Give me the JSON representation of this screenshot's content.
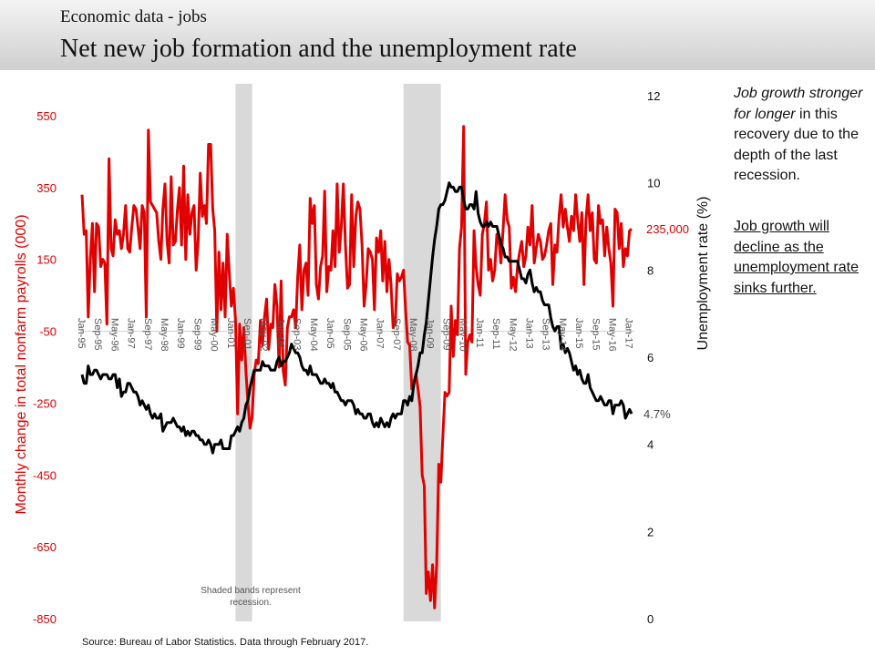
{
  "header": {
    "subtitle": "Economic data - jobs",
    "title": "Net new job formation and the unemployment rate"
  },
  "notes": {
    "note1_italic": "Job growth stronger for longer",
    "note1_rest": " in this recovery due to the depth of the last recession.",
    "note2": "Job growth will decline as the unemployment rate sinks further."
  },
  "source": "Source: Bureau of Labor Statistics. Data through February 2017.",
  "colors": {
    "payrolls": "#e00000",
    "unemployment": "#000000",
    "recession": "#d9d9d9"
  },
  "chart_data": {
    "type": "line",
    "start_month": "Jan-95",
    "end_month": "Feb-17",
    "x_tick_labels": [
      "Jan-95",
      "Sep-95",
      "May-96",
      "Jan-97",
      "Sep-97",
      "May-98",
      "Jan-99",
      "Sep-99",
      "May-00",
      "Jan-01",
      "Sep-01",
      "May-02",
      "Jan-03",
      "Sep-03",
      "May-04",
      "Jan-05",
      "Sep-05",
      "May-06",
      "Jan-07",
      "Sep-07",
      "May-08",
      "Jan-09",
      "Sep-09",
      "May-10",
      "Jan-11",
      "Sep-11",
      "May-12",
      "Jan-13",
      "Sep-13",
      "May-14",
      "Jan-15",
      "Sep-15",
      "May-16",
      "Jan-17"
    ],
    "x_tick_every_months": 8,
    "left_axis": {
      "label": "Monthly change in total nonfarm payrolls (000)",
      "ylim": [
        -850,
        550
      ],
      "ticks": [
        "550",
        "350",
        "150",
        "-50",
        "-250",
        "-450",
        "-650",
        "-850"
      ],
      "x_axis_crosses_at": -50
    },
    "right_axis": {
      "label": "Unemployment rate (%)",
      "ylim": [
        0,
        12
      ],
      "ticks": [
        "12",
        "10",
        "8",
        "6",
        "4",
        "2",
        "0"
      ]
    },
    "recessions": [
      {
        "start": "Mar-01",
        "end": "Nov-01"
      },
      {
        "start": "Dec-07",
        "end": "Jun-09"
      }
    ],
    "annotations": {
      "last_payrolls": "235,000",
      "last_unemployment": "4.7%",
      "shade_note": "Shaded bands represent recession."
    },
    "series": [
      {
        "name": "Payrolls",
        "axis": "left",
        "values": [
          330,
          220,
          230,
          -10,
          150,
          250,
          60,
          250,
          240,
          130,
          150,
          140,
          -30,
          430,
          180,
          160,
          260,
          220,
          230,
          180,
          220,
          300,
          180,
          170,
          240,
          300,
          290,
          240,
          180,
          300,
          280,
          -10,
          510,
          310,
          300,
          290,
          280,
          200,
          150,
          290,
          360,
          200,
          140,
          380,
          190,
          200,
          290,
          350,
          190,
          410,
          150,
          330,
          220,
          280,
          300,
          120,
          200,
          390,
          270,
          300,
          250,
          470,
          470,
          290,
          230,
          -50,
          170,
          10,
          140,
          -10,
          220,
          110,
          20,
          70,
          -20,
          -280,
          -30,
          -130,
          -40,
          -160,
          -250,
          -320,
          -290,
          -170,
          -130,
          -140,
          -20,
          -90,
          -10,
          40,
          -100,
          -30,
          -40,
          80,
          20,
          -150,
          90,
          -160,
          -200,
          -40,
          -10,
          -10,
          10,
          -40,
          100,
          190,
          10,
          120,
          140,
          50,
          320,
          250,
          300,
          80,
          40,
          130,
          160,
          340,
          60,
          130,
          120,
          230,
          130,
          360,
          170,
          240,
          360,
          190,
          70,
          80,
          330,
          130,
          270,
          310,
          290,
          190,
          20,
          80,
          180,
          170,
          150,
          10,
          210,
          170,
          230,
          90,
          200,
          60,
          150,
          80,
          -40,
          -30,
          110,
          90,
          100,
          120,
          10,
          -80,
          -90,
          -210,
          -190,
          -170,
          -210,
          -260,
          -450,
          -480,
          -780,
          -720,
          -800,
          -700,
          -820,
          -700,
          -420,
          -470,
          -340,
          -220,
          -230,
          -220,
          20,
          -120,
          -20,
          -60,
          180,
          240,
          520,
          -170,
          -80,
          -60,
          -80,
          230,
          130,
          80,
          50,
          220,
          250,
          310,
          120,
          150,
          90,
          120,
          220,
          200,
          140,
          230,
          330,
          260,
          240,
          70,
          100,
          60,
          130,
          170,
          200,
          130,
          160,
          240,
          190,
          300,
          140,
          180,
          220,
          200,
          150,
          160,
          190,
          230,
          250,
          80,
          190,
          170,
          270,
          330,
          240,
          290,
          240,
          200,
          270,
          230,
          330,
          260,
          200,
          280,
          80,
          260,
          330,
          230,
          280,
          150,
          140,
          300,
          250,
          260,
          160,
          240,
          180,
          140,
          20,
          290,
          280,
          180,
          250,
          130,
          180,
          160,
          230,
          235
        ]
      },
      {
        "name": "Unemployment rate",
        "axis": "right",
        "values": [
          5.6,
          5.4,
          5.4,
          5.8,
          5.6,
          5.6,
          5.7,
          5.7,
          5.6,
          5.5,
          5.6,
          5.6,
          5.6,
          5.5,
          5.5,
          5.6,
          5.6,
          5.3,
          5.5,
          5.1,
          5.2,
          5.2,
          5.4,
          5.4,
          5.3,
          5.2,
          5.2,
          5.1,
          4.9,
          5.0,
          4.9,
          4.8,
          4.9,
          4.7,
          4.6,
          4.7,
          4.6,
          4.6,
          4.7,
          4.3,
          4.4,
          4.5,
          4.5,
          4.5,
          4.6,
          4.5,
          4.4,
          4.4,
          4.3,
          4.4,
          4.2,
          4.3,
          4.2,
          4.3,
          4.3,
          4.2,
          4.2,
          4.1,
          4.1,
          4.0,
          4.0,
          4.1,
          4.0,
          3.8,
          4.0,
          4.0,
          4.0,
          4.1,
          3.9,
          3.9,
          3.9,
          3.9,
          4.2,
          4.2,
          4.3,
          4.4,
          4.3,
          4.5,
          4.6,
          4.9,
          5.0,
          5.3,
          5.5,
          5.7,
          5.7,
          5.7,
          5.7,
          5.9,
          5.8,
          5.8,
          5.8,
          5.7,
          5.7,
          5.7,
          5.9,
          6.0,
          5.8,
          5.9,
          5.9,
          6.0,
          6.1,
          6.3,
          6.2,
          6.1,
          6.1,
          6.0,
          5.8,
          5.7,
          5.7,
          5.6,
          5.8,
          5.6,
          5.6,
          5.6,
          5.5,
          5.4,
          5.4,
          5.5,
          5.4,
          5.4,
          5.3,
          5.4,
          5.2,
          5.2,
          5.1,
          5.0,
          5.0,
          4.9,
          5.0,
          5.0,
          5.0,
          4.9,
          4.7,
          4.8,
          4.7,
          4.7,
          4.6,
          4.6,
          4.7,
          4.7,
          4.5,
          4.4,
          4.5,
          4.4,
          4.6,
          4.5,
          4.4,
          4.5,
          4.4,
          4.6,
          4.7,
          4.6,
          4.7,
          4.7,
          4.7,
          5.0,
          5.0,
          4.9,
          5.1,
          5.0,
          5.4,
          5.6,
          5.8,
          6.1,
          6.1,
          6.5,
          6.8,
          7.3,
          7.8,
          8.3,
          8.7,
          9.0,
          9.4,
          9.5,
          9.5,
          9.6,
          9.8,
          10.0,
          9.9,
          9.9,
          9.8,
          9.8,
          9.9,
          9.9,
          9.6,
          9.4,
          9.4,
          9.5,
          9.5,
          9.4,
          9.8,
          9.3,
          9.1,
          9.0,
          9.0,
          9.1,
          9.0,
          9.1,
          9.0,
          9.0,
          9.0,
          8.8,
          8.6,
          8.5,
          8.3,
          8.3,
          8.2,
          8.2,
          8.2,
          8.2,
          8.2,
          8.0,
          7.8,
          7.8,
          7.7,
          7.9,
          8.0,
          7.7,
          7.5,
          7.6,
          7.5,
          7.5,
          7.3,
          7.2,
          7.2,
          7.2,
          6.9,
          6.7,
          6.6,
          6.7,
          6.7,
          6.2,
          6.3,
          6.1,
          6.2,
          6.1,
          5.9,
          5.7,
          5.8,
          5.6,
          5.7,
          5.5,
          5.4,
          5.4,
          5.6,
          5.3,
          5.2,
          5.1,
          5.0,
          5.0,
          5.1,
          5.0,
          4.9,
          4.9,
          5.0,
          5.0,
          4.7,
          4.9,
          4.9,
          4.9,
          5.0,
          4.9,
          4.6,
          4.7,
          4.8,
          4.7
        ]
      }
    ]
  }
}
